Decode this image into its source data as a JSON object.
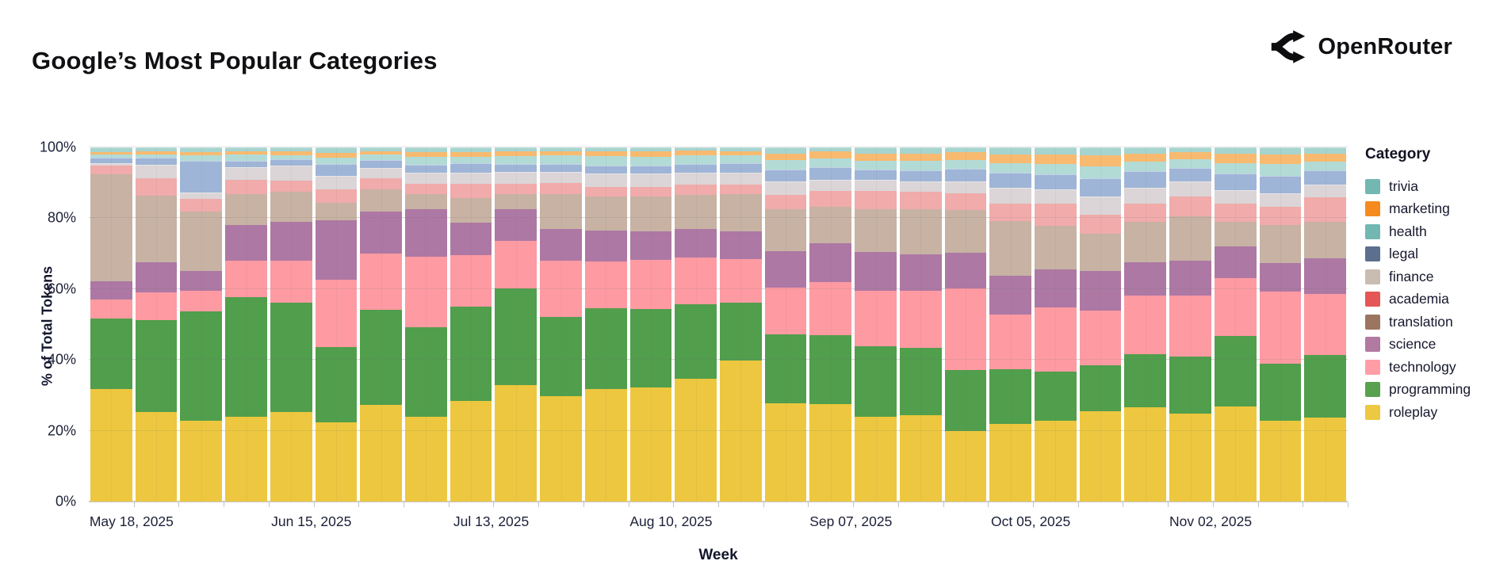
{
  "page": {
    "title": "Google’s Most Popular Categories",
    "brand": "OpenRouter"
  },
  "chart_data": {
    "type": "bar",
    "variant": "normalized-stacked-weekly",
    "title": "Google’s Most Popular Categories",
    "xlabel": "Week",
    "ylabel": "% of Total Tokens",
    "ylim": [
      0,
      100
    ],
    "grid": true,
    "legend_position": "right",
    "y_tick_labels": [
      "0%",
      "20%",
      "40%",
      "60%",
      "80%",
      "100%"
    ],
    "num_weeks": 28,
    "x_tick_labels": [
      {
        "band": 0,
        "label": "May 18, 2025"
      },
      {
        "band": 4,
        "label": "Jun 15, 2025"
      },
      {
        "band": 8,
        "label": "Jul 13, 2025"
      },
      {
        "band": 12,
        "label": "Aug 10, 2025"
      },
      {
        "band": 16,
        "label": "Sep 07, 2025"
      },
      {
        "band": 20,
        "label": "Oct 05, 2025"
      },
      {
        "band": 24,
        "label": "Nov 02, 2025"
      }
    ],
    "legend": {
      "title": "Category",
      "items": [
        {
          "name": "trivia",
          "color": "#72b7b2",
          "pattern": true
        },
        {
          "name": "marketing",
          "color": "#f58a1e",
          "pattern": false
        },
        {
          "name": "health",
          "color": "#72b7b2",
          "pattern": false
        },
        {
          "name": "legal",
          "color": "#5d6f8e",
          "pattern": true
        },
        {
          "name": "finance",
          "color": "#c9bcb0",
          "pattern": true
        },
        {
          "name": "academia",
          "color": "#e45756",
          "pattern": false
        },
        {
          "name": "translation",
          "color": "#9c7561",
          "pattern": false
        },
        {
          "name": "science",
          "color": "#b07aa1",
          "pattern": false
        },
        {
          "name": "technology",
          "color": "#ff9da6",
          "pattern": false
        },
        {
          "name": "programming",
          "color": "#59a14f",
          "pattern": false
        },
        {
          "name": "roleplay",
          "color": "#ecc843",
          "pattern": false
        }
      ]
    },
    "series": [
      {
        "name": "roleplay",
        "color": "#edc73f",
        "pattern": false,
        "values": [
          32,
          25.5,
          23,
          24,
          25.5,
          22.5,
          27.5,
          24,
          28.5,
          33,
          30,
          32,
          32.4,
          35,
          40,
          28,
          27.7,
          24.2,
          24.6,
          20.1,
          22.1,
          23,
          25.6,
          26.9,
          24.9,
          27,
          23,
          23.9
        ]
      },
      {
        "name": "programming",
        "color": "#519e4c",
        "pattern": false,
        "values": [
          20,
          26,
          31,
          34,
          31,
          21.5,
          27,
          25.5,
          27,
          27.5,
          22.5,
          23,
          22.4,
          21,
          16.5,
          19.6,
          19.6,
          19.9,
          19.2,
          17.2,
          15.5,
          14,
          13.2,
          15.1,
          16.3,
          20,
          16.2,
          17.7
        ]
      },
      {
        "name": "technology",
        "color": "#fe9aa2",
        "pattern": false,
        "values": [
          5.5,
          8,
          6,
          10.5,
          12,
          19,
          16,
          20,
          14.5,
          13.5,
          16,
          13.2,
          14,
          13.3,
          12.5,
          13.2,
          15,
          15.9,
          16.2,
          23.2,
          15.5,
          18.1,
          15.5,
          16.6,
          17.4,
          16.6,
          20.5,
          17.3
        ]
      },
      {
        "name": "science",
        "color": "#ad78a4",
        "pattern": false,
        "values": [
          5,
          8.5,
          5.5,
          10,
          11,
          17,
          12,
          13.5,
          9.3,
          9,
          9,
          8.9,
          8.1,
          8.1,
          7.7,
          10.4,
          11.2,
          11,
          10.3,
          10.2,
          11.1,
          10.9,
          11.2,
          9.5,
          9.8,
          8.9,
          8.1,
          10.2
        ]
      },
      {
        "name": "translation",
        "color": "#c7b2a3",
        "pattern": false,
        "values": [
          30.5,
          19,
          17,
          9,
          8.5,
          5,
          6.3,
          4.3,
          7,
          4.3,
          9.9,
          9.7,
          9.9,
          9.8,
          10.7,
          11.8,
          10.2,
          12,
          12.7,
          12.1,
          15.5,
          12.4,
          10.7,
          11.4,
          12.6,
          6.9,
          10.7,
          10.4
        ]
      },
      {
        "name": "academia",
        "color": "#f0abaa",
        "pattern": false,
        "values": [
          2.5,
          5,
          3.5,
          4,
          3.3,
          3.8,
          3.2,
          3.1,
          4,
          3.1,
          3.1,
          2.7,
          2.7,
          2.8,
          2.6,
          4.1,
          4.6,
          5.2,
          5.1,
          4.8,
          5,
          6.2,
          5.4,
          5.2,
          5.8,
          5.2,
          5.2,
          6.9
        ]
      },
      {
        "name": "finance",
        "color": "#dbd5d7",
        "pattern": true,
        "values": [
          0.5,
          3.5,
          1.5,
          3.3,
          3.9,
          3.6,
          2.5,
          2.9,
          3,
          3.1,
          2.9,
          3.5,
          3.5,
          3.3,
          3.2,
          3.7,
          3,
          3,
          2.7,
          3.2,
          4.3,
          4,
          4.8,
          4.3,
          4,
          3.7,
          3.7,
          3.4
        ]
      },
      {
        "name": "legal",
        "color": "#9fb5d7",
        "pattern": true,
        "values": [
          1.3,
          1.8,
          9,
          1.6,
          1.6,
          3.2,
          2.2,
          2,
          2.5,
          1.9,
          2.1,
          2,
          2,
          2.1,
          2.5,
          3.2,
          3.4,
          2.8,
          2.8,
          3.3,
          4,
          4,
          5,
          4.4,
          3.5,
          4.5,
          4.8,
          3.8
        ]
      },
      {
        "name": "health",
        "color": "#b3dbd6",
        "pattern": false,
        "values": [
          0.8,
          0.8,
          1.5,
          1.9,
          1.2,
          1.7,
          1.5,
          2.3,
          1.7,
          2.3,
          2.5,
          2.8,
          2.6,
          2.6,
          2.3,
          2.7,
          2.4,
          2.5,
          2.7,
          2.6,
          2.8,
          3,
          3.5,
          2.7,
          2.6,
          3,
          3.2,
          2.6
        ]
      },
      {
        "name": "marketing",
        "color": "#f7ba70",
        "pattern": false,
        "values": [
          0.8,
          1,
          0.9,
          0.7,
          1,
          1.3,
          0.9,
          1.3,
          1.3,
          1.3,
          1.2,
          1.3,
          1.4,
          1.4,
          1.2,
          1.8,
          1.9,
          2,
          2.2,
          2.2,
          2.4,
          2.6,
          3,
          2.4,
          2,
          2.7,
          2.8,
          2.2
        ]
      },
      {
        "name": "trivia",
        "color": "#a6d4cf",
        "pattern": true,
        "values": [
          1.1,
          0.9,
          1.1,
          1,
          1,
          1.4,
          0.9,
          1.1,
          1.2,
          1,
          0.8,
          0.9,
          1,
          0.6,
          0.8,
          1.5,
          1,
          1.5,
          1.5,
          1.1,
          1.8,
          1.8,
          2.1,
          1.5,
          1.1,
          1.5,
          1.8,
          1.6
        ]
      }
    ]
  }
}
